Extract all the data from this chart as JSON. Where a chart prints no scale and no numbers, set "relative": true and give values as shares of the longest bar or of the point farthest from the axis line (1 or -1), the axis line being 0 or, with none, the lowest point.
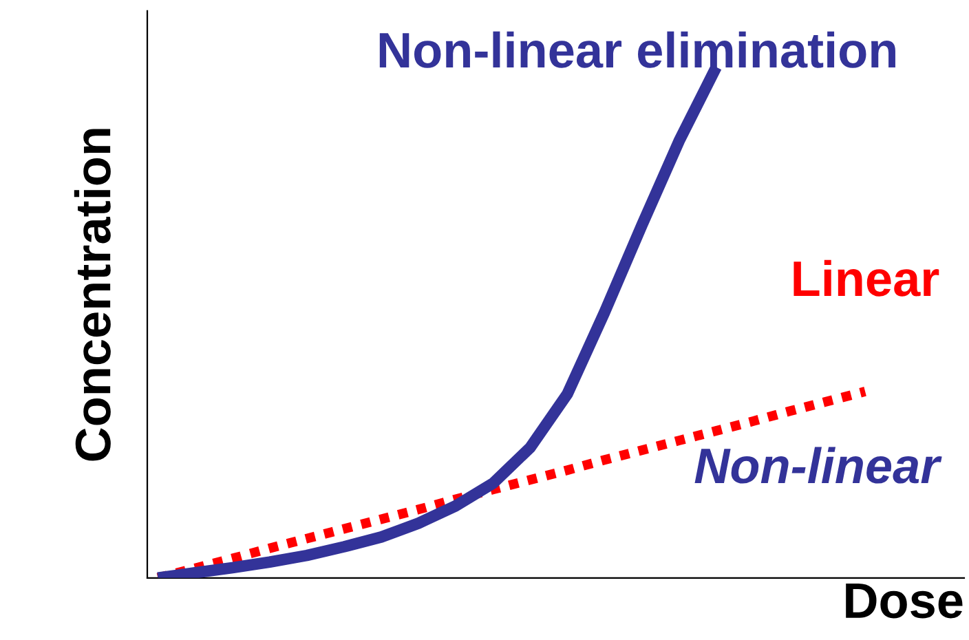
{
  "chart_data": {
    "type": "line",
    "title": "Non-linear elimination",
    "xlabel": "Dose",
    "ylabel": "Concentration",
    "relative": true,
    "tick_labels": false,
    "legend": false,
    "categories": [
      null,
      null,
      null,
      null,
      null,
      null,
      null,
      null,
      null,
      null,
      null,
      null,
      null,
      null,
      null,
      null,
      null,
      null,
      null,
      null
    ],
    "series": [
      {
        "name": "Non-linear",
        "color": "#333399",
        "line_style": "solid",
        "values": [
          0,
          0.01,
          0.02,
          0.031,
          0.044,
          0.061,
          0.08,
          0.107,
          0.141,
          0.185,
          0.255,
          0.36,
          0.52,
          0.69,
          0.855,
          1.0,
          null,
          null,
          null,
          null
        ]
      },
      {
        "name": "Linear",
        "color": "#ff0000",
        "line_style": "dotted",
        "values": [
          0,
          0.019,
          0.038,
          0.058,
          0.077,
          0.096,
          0.115,
          0.134,
          0.154,
          0.173,
          0.192,
          0.211,
          0.231,
          0.25,
          0.269,
          0.288,
          0.307,
          0.327,
          0.346,
          0.365
        ]
      }
    ]
  }
}
